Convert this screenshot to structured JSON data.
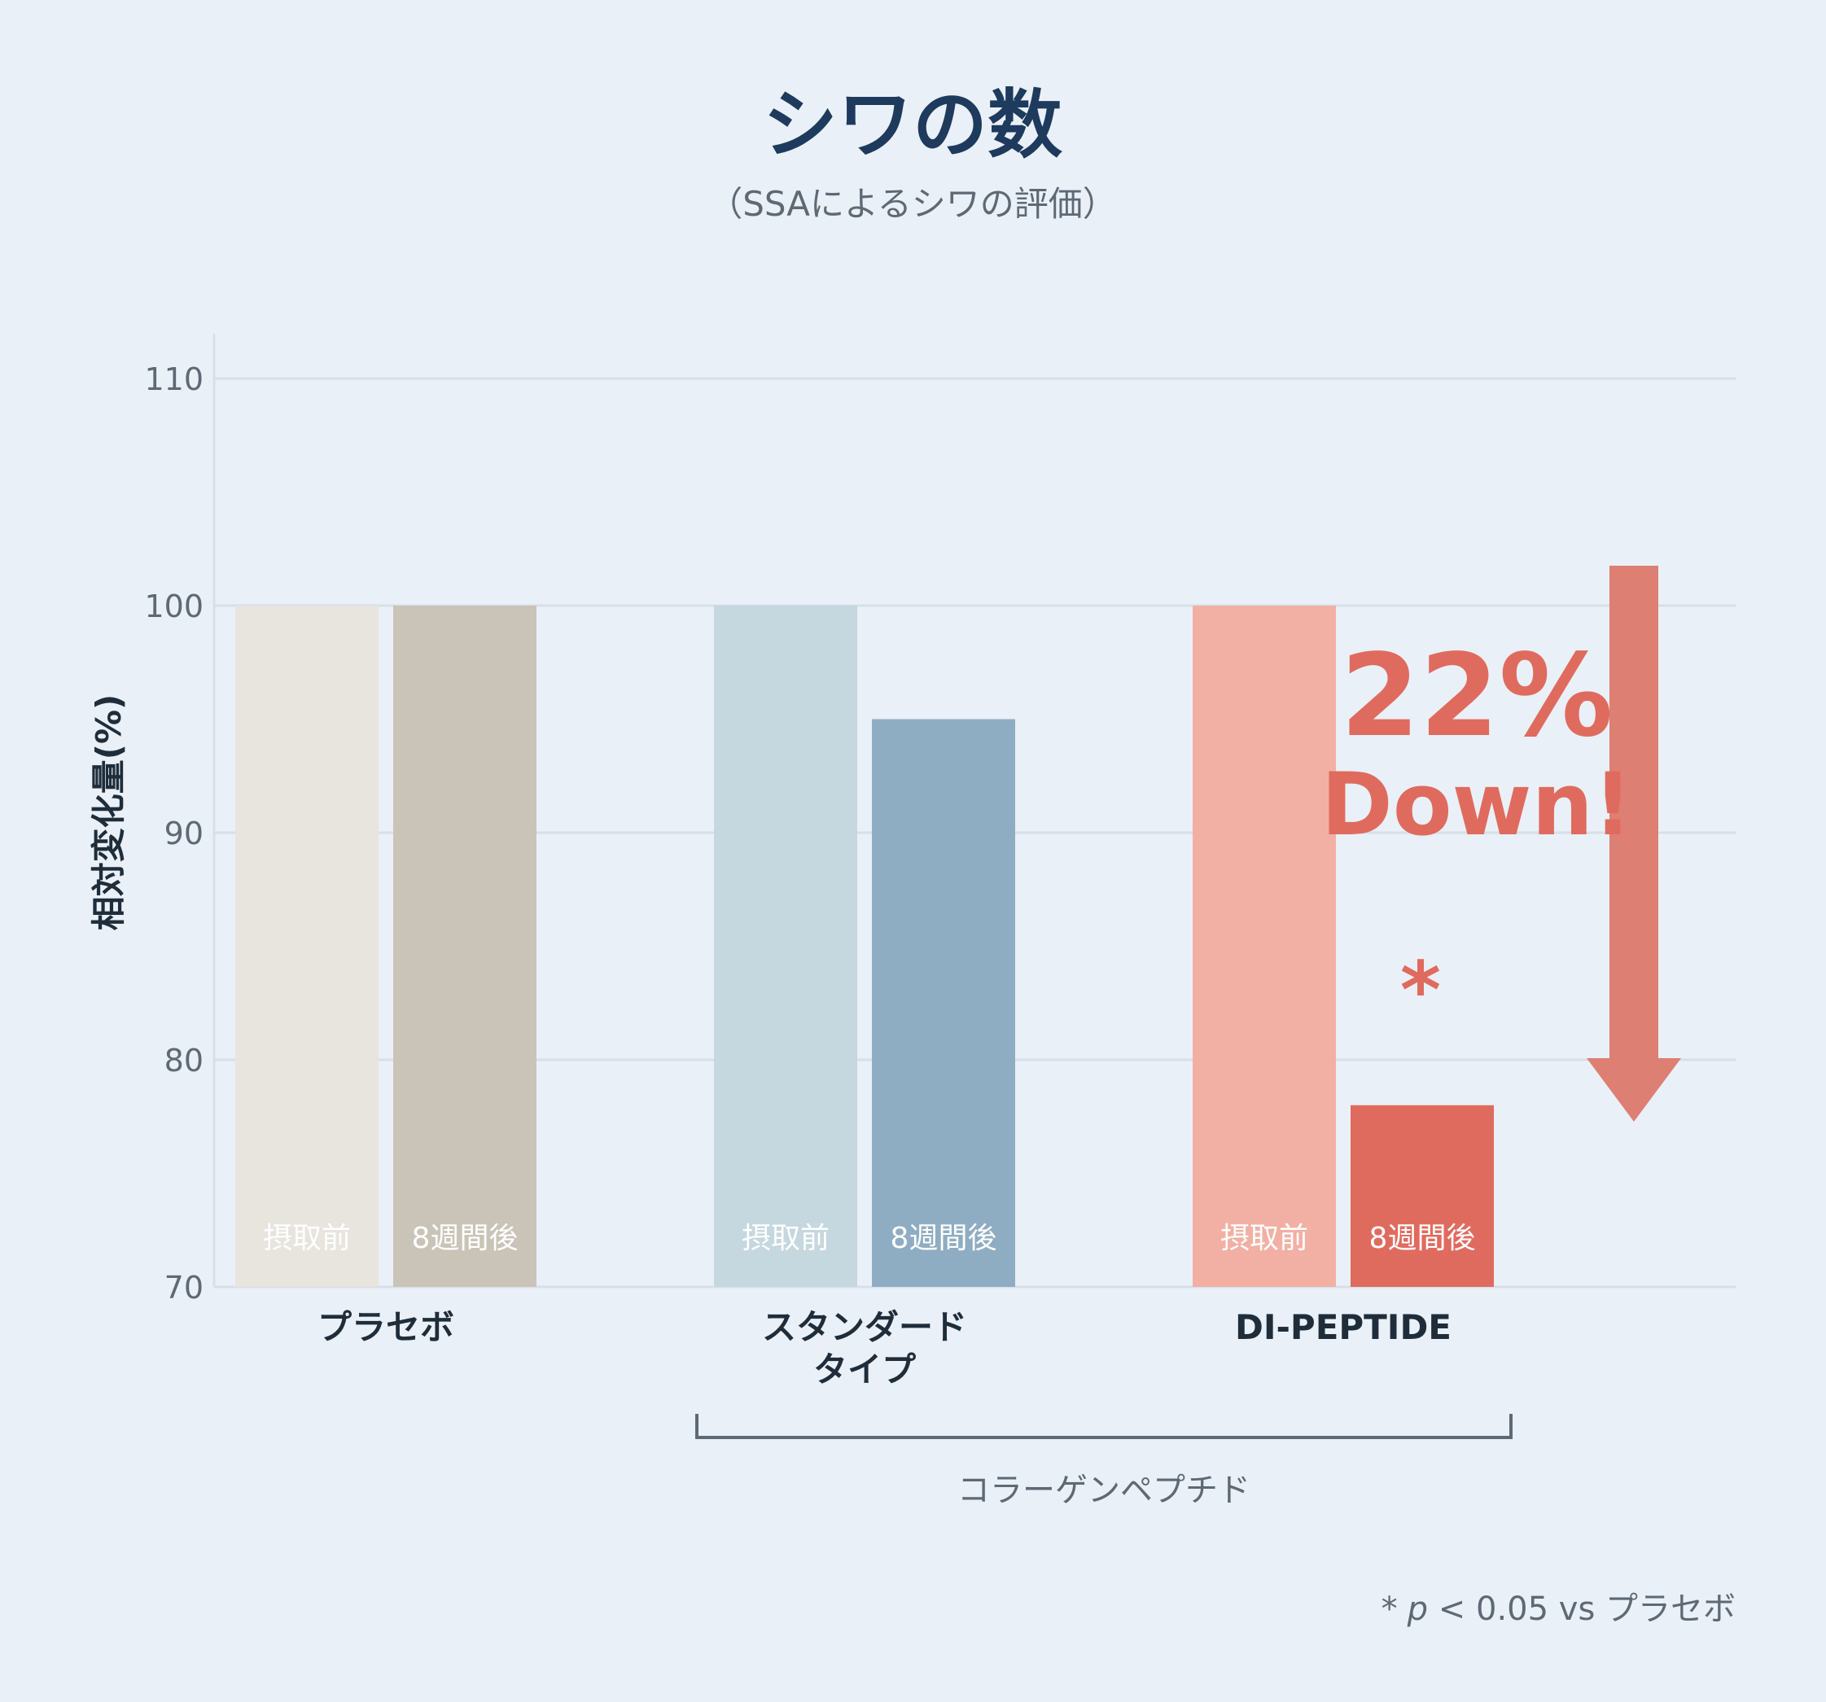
{
  "chart_data": {
    "type": "bar",
    "title": "シワの数",
    "subtitle": "（SSAによるシワの評価）",
    "ylabel": "相対変化量(%)",
    "ylim": [
      70,
      110
    ],
    "yticks": [
      70,
      80,
      90,
      100,
      110
    ],
    "grid": true,
    "groups": [
      {
        "label_lines": [
          "プラセボ"
        ],
        "bars": [
          {
            "label": "摂取前",
            "value": 100,
            "color": "#e8e4de"
          },
          {
            "label": "8週間後",
            "value": 100,
            "color": "#cac4b8"
          }
        ]
      },
      {
        "label_lines": [
          "スタンダード",
          "タイプ"
        ],
        "bars": [
          {
            "label": "摂取前",
            "value": 100,
            "color": "#c5d7df"
          },
          {
            "label": "8週間後",
            "value": 95,
            "color": "#8fadc2"
          }
        ]
      },
      {
        "label_lines": [
          "DI-PEPTIDE"
        ],
        "bars": [
          {
            "label": "摂取前",
            "value": 100,
            "color": "#f2b0a4"
          },
          {
            "label": "8週間後",
            "value": 78,
            "color": "#df6b5e"
          }
        ]
      }
    ],
    "bracket_label": "コラーゲンペプチド",
    "annotation": {
      "line1": "22%",
      "line2": "Down!"
    },
    "significance_mark": "*",
    "footnote": {
      "star": "*",
      "p": "p",
      "rest": " < 0.05 vs プラセボ"
    }
  },
  "colors": {
    "background": "#eaf0f7",
    "title": "#1e3a5c",
    "subtitle": "#5e6975",
    "axis_text": "#5e6975",
    "group_label": "#1f2d3b",
    "bar_label": "#ffffff",
    "grid": "#d7dfe8",
    "bracket": "#5e6975",
    "accent": "#df6b5e",
    "arrow": "#de7f73"
  }
}
